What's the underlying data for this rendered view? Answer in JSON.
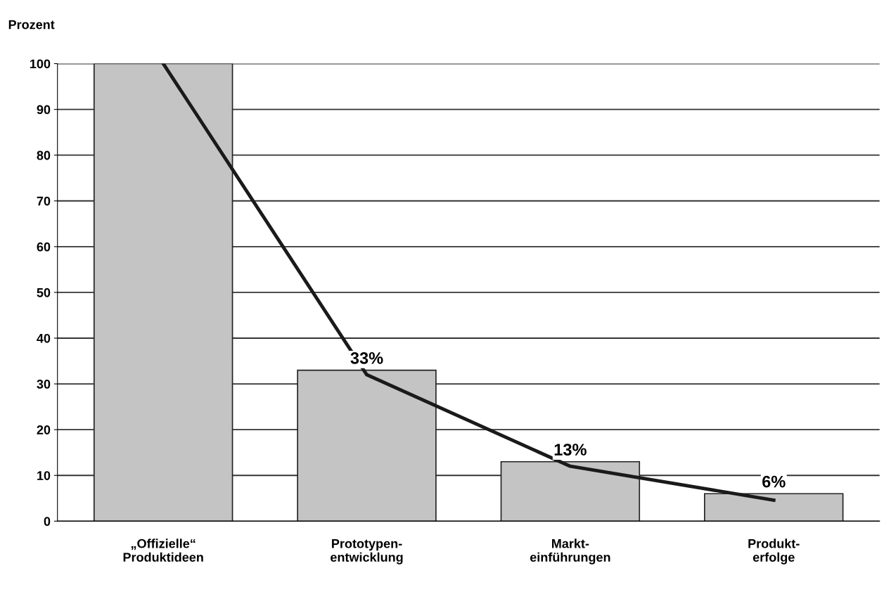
{
  "chart_data": {
    "type": "bar",
    "ylabel": "Prozent",
    "categories": [
      "„Offizielle“\nProduktideen",
      "Prototypen-\nentwicklung",
      "Markt-\neinführungen",
      "Produkt-\nerfolge"
    ],
    "series": [
      {
        "color": "#c4c4c4",
        "values": [
          100,
          33,
          13,
          6
        ],
        "value_labels": [
          null,
          "33%",
          "13%",
          "6%"
        ]
      },
      {
        "type": "line",
        "color": "#1a1a1a",
        "values": [
          100,
          32,
          12,
          4.6
        ]
      }
    ],
    "ylim": [
      0,
      100
    ],
    "yticks": [
      0,
      10,
      20,
      30,
      40,
      50,
      60,
      70,
      80,
      90,
      100
    ],
    "grid": "y",
    "marker": "none",
    "line_style": "solid"
  }
}
